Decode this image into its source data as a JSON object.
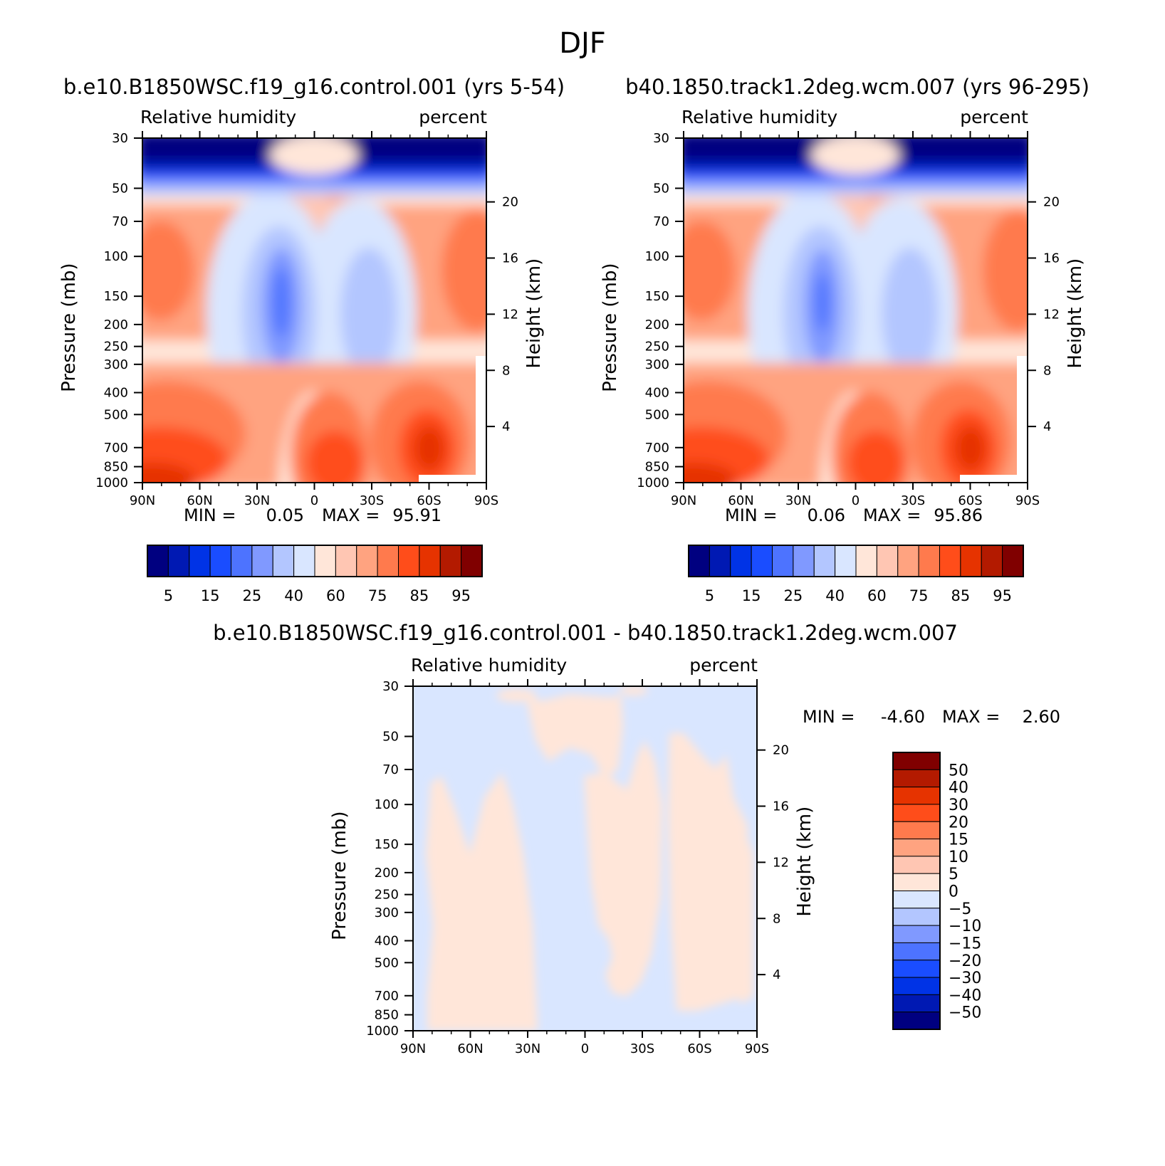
{
  "figure_title": "DJF",
  "palette_abs": [
    "#000080",
    "#0019b3",
    "#0033e6",
    "#1a4dff",
    "#4d73ff",
    "#8099ff",
    "#b3c6ff",
    "#d9e6ff",
    "#ffe6d9",
    "#ffc6b3",
    "#ffa380",
    "#ff7a4d",
    "#ff4d1a",
    "#e63300",
    "#b31a00",
    "#800000"
  ],
  "palette_diff": [
    "#000080",
    "#0019b3",
    "#0033e6",
    "#1a4dff",
    "#4d73ff",
    "#8099ff",
    "#b3c6ff",
    "#d9e6ff",
    "#ffe6d9",
    "#ffc6b3",
    "#ffa380",
    "#ff7a4d",
    "#ff4d1a",
    "#e63300",
    "#b31a00",
    "#800000"
  ],
  "chart_data": [
    {
      "id": "left",
      "type": "heatmap",
      "title": "b.e10.B1850WSC.f19_g16.control.001 (yrs 5-54)",
      "variable": "Relative humidity",
      "units": "percent",
      "ylabel": "Pressure (mb)",
      "ylabel_right": "Height (km)",
      "x_ticks": [
        "90N",
        "60N",
        "30N",
        "0",
        "30S",
        "60S",
        "90S"
      ],
      "x_range": [
        90,
        -90
      ],
      "p_ticks": [
        "30",
        "50",
        "70",
        "100",
        "150",
        "200",
        "250",
        "300",
        "400",
        "500",
        "700",
        "850",
        "1000"
      ],
      "z_ticks": [
        "20",
        "16",
        "12",
        "8",
        "4"
      ],
      "ylim": [
        30,
        1000
      ],
      "min_label": "MIN =",
      "min_value": "0.05",
      "max_label": "MAX =",
      "max_value": "95.91",
      "colorbar_labels": [
        "5",
        "15",
        "25",
        "40",
        "60",
        "75",
        "85",
        "95"
      ]
    },
    {
      "id": "right",
      "type": "heatmap",
      "title": "b40.1850.track1.2deg.wcm.007 (yrs 96-295)",
      "variable": "Relative humidity",
      "units": "percent",
      "ylabel": "Pressure (mb)",
      "ylabel_right": "Height (km)",
      "x_ticks": [
        "90N",
        "60N",
        "30N",
        "0",
        "30S",
        "60S",
        "90S"
      ],
      "x_range": [
        90,
        -90
      ],
      "p_ticks": [
        "30",
        "50",
        "70",
        "100",
        "150",
        "200",
        "250",
        "300",
        "400",
        "500",
        "700",
        "850",
        "1000"
      ],
      "z_ticks": [
        "20",
        "16",
        "12",
        "8",
        "4"
      ],
      "ylim": [
        30,
        1000
      ],
      "min_label": "MIN =",
      "min_value": "0.06",
      "max_label": "MAX =",
      "max_value": "95.86",
      "colorbar_labels": [
        "5",
        "15",
        "25",
        "40",
        "60",
        "75",
        "85",
        "95"
      ]
    },
    {
      "id": "diff",
      "type": "heatmap",
      "title": "b.e10.B1850WSC.f19_g16.control.001 - b40.1850.track1.2deg.wcm.007",
      "variable": "Relative humidity",
      "units": "percent",
      "ylabel": "Pressure (mb)",
      "ylabel_right": "Height (km)",
      "x_ticks": [
        "90N",
        "60N",
        "30N",
        "0",
        "30S",
        "60S",
        "90S"
      ],
      "x_range": [
        90,
        -90
      ],
      "p_ticks": [
        "30",
        "50",
        "70",
        "100",
        "150",
        "200",
        "250",
        "300",
        "400",
        "500",
        "700",
        "850",
        "1000"
      ],
      "z_ticks": [
        "20",
        "16",
        "12",
        "8",
        "4"
      ],
      "ylim": [
        30,
        1000
      ],
      "min_label": "MIN =",
      "min_value": "-4.60",
      "max_label": "MAX =",
      "max_value": "2.60",
      "colorbar_labels": [
        "50",
        "40",
        "30",
        "20",
        "15",
        "10",
        "5",
        "0",
        "-5",
        "-10",
        "-15",
        "-20",
        "-30",
        "-40",
        "-50"
      ]
    }
  ]
}
